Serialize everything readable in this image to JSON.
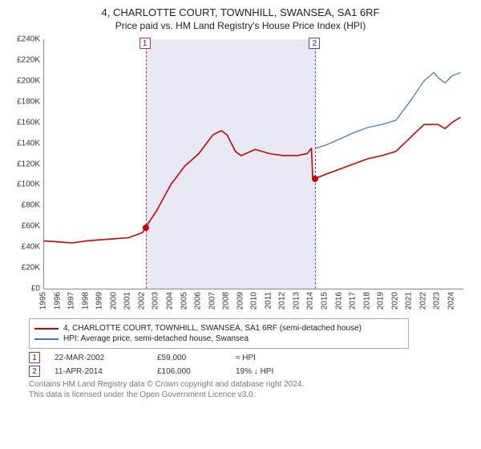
{
  "title_line1": "4, CHARLOTTE COURT, TOWNHILL, SWANSEA, SA1 6RF",
  "title_line2": "Price paid vs. HM Land Registry's House Price Index (HPI)",
  "chart": {
    "type": "line",
    "background_color": "#ffffff",
    "axis_color": "#888888",
    "tick_font_size": 10,
    "tick_color": "#333333",
    "y": {
      "min": 0,
      "max": 240000,
      "step": 20000,
      "labels": [
        "£0",
        "£20K",
        "£40K",
        "£60K",
        "£80K",
        "£100K",
        "£120K",
        "£140K",
        "£160K",
        "£180K",
        "£200K",
        "£220K",
        "£240K"
      ]
    },
    "x": {
      "min": 1995,
      "max": 2024.8,
      "tick_years": [
        1995,
        1996,
        1997,
        1998,
        1999,
        2000,
        2001,
        2002,
        2003,
        2004,
        2005,
        2006,
        2007,
        2008,
        2009,
        2010,
        2011,
        2012,
        2013,
        2014,
        2015,
        2016,
        2017,
        2018,
        2019,
        2020,
        2021,
        2022,
        2023,
        2024
      ]
    },
    "band": {
      "from_year": 2002.22,
      "to_year": 2014.28,
      "fill": "#e9e9f5"
    },
    "sale_markers": [
      {
        "n": "1",
        "year": 2002.22,
        "price": 59000,
        "dash_color": "#cc3333",
        "box_color": "#cc3333",
        "dot_color": "#cc0000"
      },
      {
        "n": "2",
        "year": 2014.28,
        "price": 106000,
        "dash_color": "#3355cc",
        "box_color": "#3355cc",
        "dot_color": "#cc0000"
      }
    ],
    "series": [
      {
        "id": "property",
        "label": "4, CHARLOTTE COURT, TOWNHILL, SWANSEA, SA1 6RF (semi-detached house)",
        "color": "#cc0000",
        "line_width": 1.6,
        "points": [
          [
            1995,
            46000
          ],
          [
            1996,
            45000
          ],
          [
            1997,
            44000
          ],
          [
            1998,
            46000
          ],
          [
            1999,
            47000
          ],
          [
            2000,
            48000
          ],
          [
            2001,
            49000
          ],
          [
            2002,
            54000
          ],
          [
            2002.22,
            59000
          ],
          [
            2003,
            75000
          ],
          [
            2004,
            100000
          ],
          [
            2005,
            118000
          ],
          [
            2006,
            130000
          ],
          [
            2007,
            148000
          ],
          [
            2007.6,
            152000
          ],
          [
            2008,
            148000
          ],
          [
            2008.6,
            132000
          ],
          [
            2009,
            128000
          ],
          [
            2010,
            134000
          ],
          [
            2011,
            130000
          ],
          [
            2012,
            128000
          ],
          [
            2013,
            128000
          ],
          [
            2013.7,
            130000
          ],
          [
            2014,
            135000
          ],
          [
            2014.1,
            105000
          ],
          [
            2014.28,
            106000
          ],
          [
            2015,
            110000
          ],
          [
            2016,
            115000
          ],
          [
            2017,
            120000
          ],
          [
            2018,
            125000
          ],
          [
            2019,
            128000
          ],
          [
            2020,
            132000
          ],
          [
            2021,
            145000
          ],
          [
            2022,
            158000
          ],
          [
            2023,
            158000
          ],
          [
            2023.5,
            154000
          ],
          [
            2024,
            160000
          ],
          [
            2024.6,
            165000
          ]
        ]
      },
      {
        "id": "hpi",
        "label": "HPI: Average price, semi-detached house, Swansea",
        "color": "#3b6fc9",
        "line_width": 1.2,
        "start_year": 2014.28,
        "points": [
          [
            2014.28,
            135000
          ],
          [
            2015,
            138000
          ],
          [
            2016,
            144000
          ],
          [
            2017,
            150000
          ],
          [
            2018,
            155000
          ],
          [
            2019,
            158000
          ],
          [
            2020,
            162000
          ],
          [
            2021,
            180000
          ],
          [
            2022,
            200000
          ],
          [
            2022.7,
            208000
          ],
          [
            2023,
            203000
          ],
          [
            2023.5,
            198000
          ],
          [
            2024,
            205000
          ],
          [
            2024.6,
            208000
          ]
        ]
      }
    ]
  },
  "legend": {
    "border_color": "#aaaaaa",
    "items": [
      {
        "color": "#cc0000",
        "label": "4, CHARLOTTE COURT, TOWNHILL, SWANSEA, SA1 6RF (semi-detached house)"
      },
      {
        "color": "#3b6fc9",
        "label": "HPI: Average price, semi-detached house, Swansea"
      }
    ]
  },
  "sales": [
    {
      "n": "1",
      "box_color": "#cc3333",
      "date": "22-MAR-2002",
      "price": "£59,000",
      "rel": "≈ HPI"
    },
    {
      "n": "2",
      "box_color": "#3355cc",
      "date": "11-APR-2014",
      "price": "£106,000",
      "rel": "19% ↓ HPI"
    }
  ],
  "attribution_line1": "Contains HM Land Registry data © Crown copyright and database right 2024.",
  "attribution_line2": "This data is licensed under the Open Government Licence v3.0."
}
